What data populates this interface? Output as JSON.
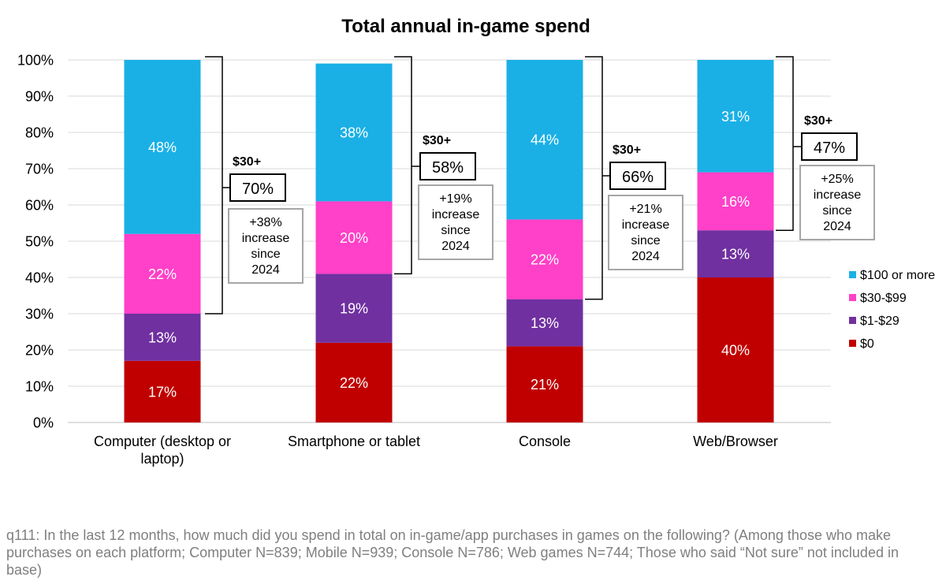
{
  "chart_data": {
    "type": "bar",
    "stacked": true,
    "title": "Total annual in-game spend",
    "categories": [
      "Computer (desktop or laptop)",
      "Smartphone or tablet",
      "Console",
      "Web/Browser"
    ],
    "series": [
      {
        "name": "$0",
        "color": "#c00000",
        "values": [
          17,
          22,
          21,
          40
        ]
      },
      {
        "name": "$1-$29",
        "color": "#7030a0",
        "values": [
          13,
          19,
          13,
          13
        ]
      },
      {
        "name": "$30-$99",
        "color": "#ff40c8",
        "values": [
          22,
          20,
          22,
          16
        ]
      },
      {
        "name": "$100 or more",
        "color": "#1ab0e6",
        "values": [
          48,
          38,
          44,
          31
        ]
      }
    ],
    "data_labels": [
      [
        "17%",
        "13%",
        "22%",
        "48%"
      ],
      [
        "22%",
        "19%",
        "20%",
        "38%"
      ],
      [
        "21%",
        "13%",
        "22%",
        "44%"
      ],
      [
        "40%",
        "13%",
        "16%",
        "31%"
      ]
    ],
    "yticks": [
      "0%",
      "10%",
      "20%",
      "30%",
      "40%",
      "50%",
      "60%",
      "70%",
      "80%",
      "90%",
      "100%"
    ],
    "ylim": [
      0,
      100
    ],
    "grid": true,
    "legend": {
      "placement": "right",
      "order": [
        "$100 or more",
        "$30-$99",
        "$1-$29",
        "$0"
      ]
    },
    "annotations": [
      {
        "category": "Computer (desktop or laptop)",
        "header": "$30+",
        "value": "70%",
        "note": [
          "+38%",
          "increase",
          "since",
          "2024"
        ]
      },
      {
        "category": "Smartphone or tablet",
        "header": "$30+",
        "value": "58%",
        "note": [
          "+19%",
          "increase",
          "since",
          "2024"
        ]
      },
      {
        "category": "Console",
        "header": "$30+",
        "value": "66%",
        "note": [
          "+21%",
          "increase",
          "since",
          "2024"
        ]
      },
      {
        "category": "Web/Browser",
        "header": "$30+",
        "value": "47%",
        "note": [
          "+25%",
          "increase",
          "since",
          "2024"
        ]
      }
    ]
  },
  "footnote": "q111: In the last 12 months, how much did you spend in total on in-game/app purchases in games on the following? (Among those who make purchases on each platform; Computer N=839; Mobile N=939; Console N=786; Web games N=744; Those who said “Not sure” not included in base)"
}
